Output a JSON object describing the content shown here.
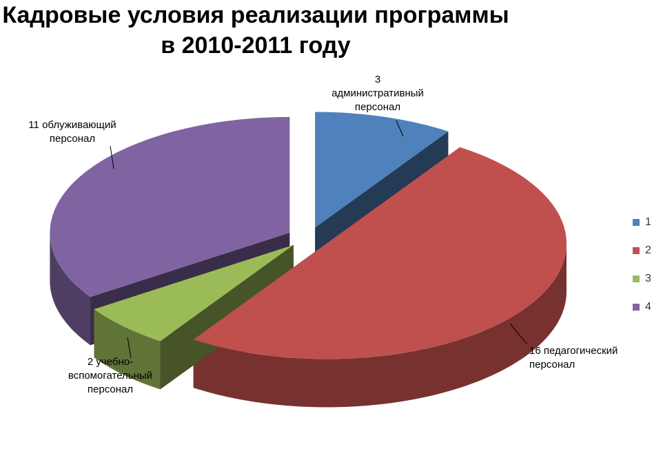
{
  "chart_data": {
    "type": "pie",
    "title": [
      "Кадровые условия реализации программы",
      "в 2010-2011 году"
    ],
    "slices": [
      {
        "legend": "1",
        "value": 3,
        "label": [
          "3",
          "административный",
          "персонал"
        ],
        "color": "#4F81BD"
      },
      {
        "legend": "2",
        "value": 16,
        "label": [
          "16 педагогический",
          "персонал"
        ],
        "color": "#C0504D"
      },
      {
        "legend": "3",
        "value": 2,
        "label": [
          "2 учебно-",
          "вспомогательный",
          "персонал"
        ],
        "color": "#9BBB59"
      },
      {
        "legend": "4",
        "value": 11,
        "label": [
          "11 облуживающий",
          "персонал"
        ],
        "color": "#8064A2"
      }
    ],
    "legend_position": "right",
    "style": "3d-exploded"
  }
}
